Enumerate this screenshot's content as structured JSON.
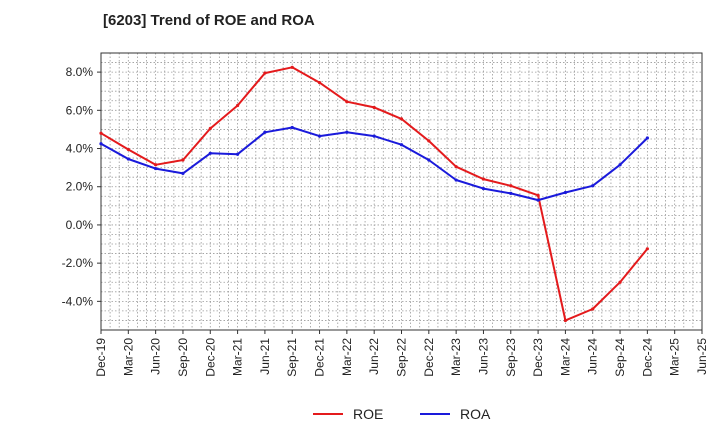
{
  "chart_data": {
    "type": "line",
    "title": "[6203]  Trend of ROE and ROA",
    "x": [
      "Dec-19",
      "Mar-20",
      "Jun-20",
      "Sep-20",
      "Dec-20",
      "Mar-21",
      "Jun-21",
      "Sep-21",
      "Dec-21",
      "Mar-22",
      "Jun-22",
      "Sep-22",
      "Dec-22",
      "Mar-23",
      "Jun-23",
      "Sep-23",
      "Dec-23",
      "Mar-24",
      "Jun-24",
      "Sep-24",
      "Dec-24",
      "Mar-25"
    ],
    "x_tick_labels": [
      "Dec-19",
      "Mar-20",
      "Jun-20",
      "Sep-20",
      "Dec-20",
      "Mar-21",
      "Jun-21",
      "Sep-21",
      "Dec-21",
      "Mar-22",
      "Jun-22",
      "Sep-22",
      "Dec-22",
      "Mar-23",
      "Jun-23",
      "Sep-23",
      "Dec-23",
      "Mar-24",
      "Jun-24",
      "Sep-24",
      "Dec-24",
      "Mar-25",
      "Jun-25"
    ],
    "y_ticks": [
      -4.0,
      -2.0,
      0.0,
      2.0,
      4.0,
      6.0,
      8.0
    ],
    "y_tick_labels": [
      "-4.0%",
      "-2.0%",
      "0.0%",
      "2.0%",
      "4.0%",
      "6.0%",
      "8.0%"
    ],
    "ylim": [
      -5.5,
      9.0
    ],
    "xlabel": "",
    "ylabel": "",
    "grid": true,
    "legend_position": "bottom",
    "series": [
      {
        "name": "ROE",
        "color": "#e41a1c",
        "values": [
          4.8,
          3.95,
          3.15,
          3.4,
          5.05,
          6.25,
          7.95,
          8.25,
          7.45,
          6.45,
          6.15,
          5.55,
          4.4,
          3.05,
          2.4,
          2.05,
          1.55,
          -5.0,
          -4.4,
          -3.0,
          -1.25,
          null
        ]
      },
      {
        "name": "ROA",
        "color": "#1a1adb",
        "values": [
          4.25,
          3.45,
          2.95,
          2.7,
          3.75,
          3.7,
          4.85,
          5.1,
          4.65,
          4.85,
          4.65,
          4.2,
          3.4,
          2.35,
          1.9,
          1.65,
          1.3,
          1.7,
          2.05,
          3.15,
          4.55,
          null
        ]
      }
    ]
  }
}
